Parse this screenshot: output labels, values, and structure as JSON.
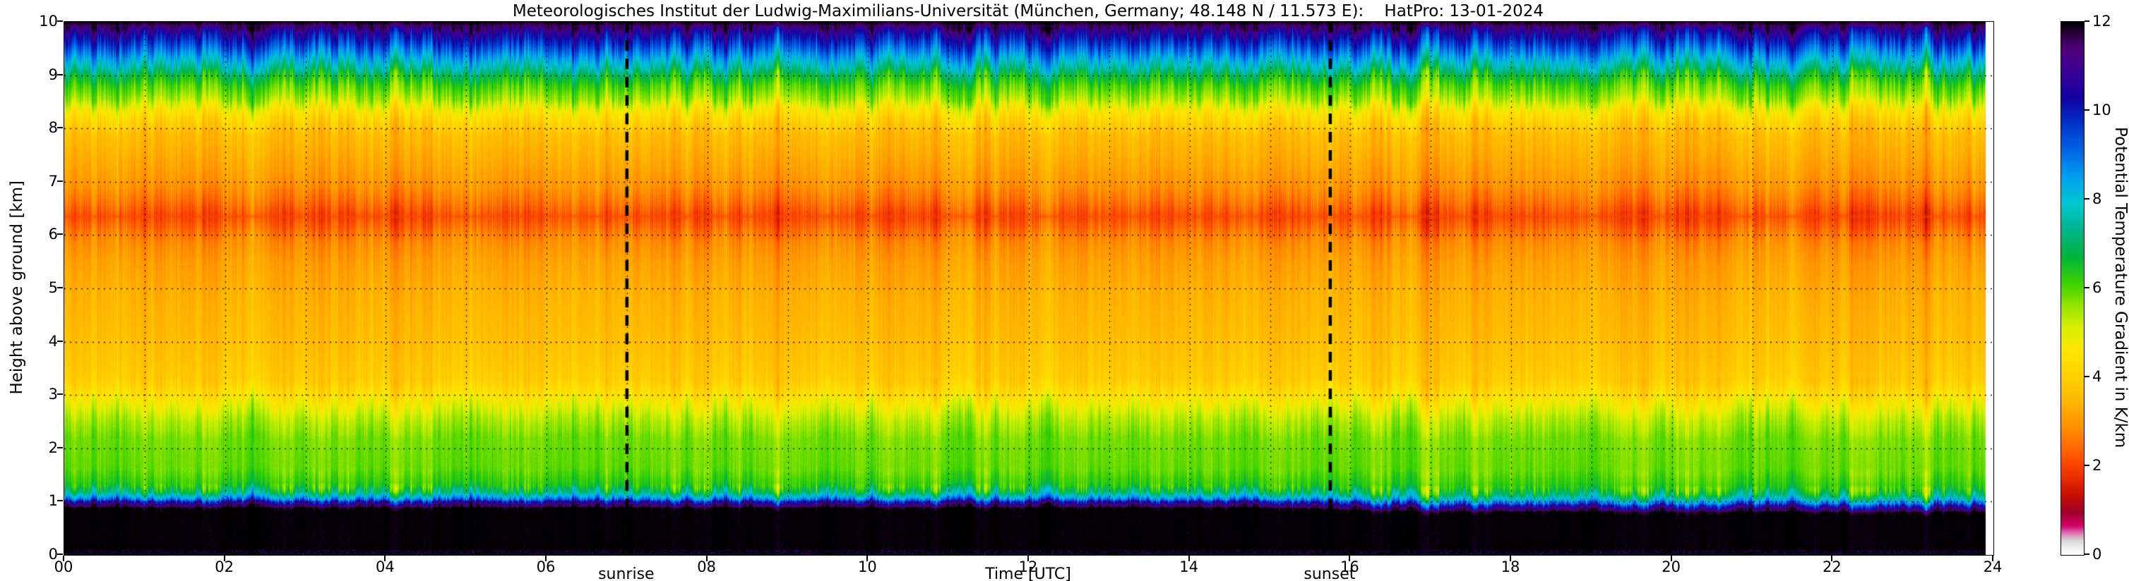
{
  "title": "Meteorologisches Institut der Ludwig-Maximilians-Universität (München, Germany; 48.148 N / 11.573 E):    HatPro: 13-01-2024",
  "chart_data": {
    "type": "heatmap",
    "title": "Meteorologisches Institut der Ludwig-Maximilians-Universität (München, Germany; 48.148 N / 11.573 E):    HatPro: 13-01-2024",
    "xlabel": "Time [UTC]",
    "ylabel": "Height above ground [km]",
    "colorbar_label": "Potential Temperature Gradient in K/km",
    "x_range_utc": [
      0,
      24
    ],
    "y_range_km": [
      0,
      10
    ],
    "value_range_K_per_km": [
      0,
      12
    ],
    "x_tick_labels": [
      "00",
      "02",
      "04",
      "06",
      "08",
      "10",
      "12",
      "14",
      "16",
      "18",
      "20",
      "22",
      "24"
    ],
    "y_tick_labels": [
      "0",
      "1",
      "2",
      "3",
      "4",
      "5",
      "6",
      "7",
      "8",
      "9",
      "10"
    ],
    "colorbar_tick_labels": [
      "0",
      "2",
      "4",
      "6",
      "8",
      "10",
      "12"
    ],
    "grid": "dotted black, vertical each hour, horizontal each km",
    "annotations": [
      {
        "label": "sunrise",
        "x_utc": 7.0,
        "style": "dashed-vertical-line"
      },
      {
        "label": "sunset",
        "x_utc": 15.75,
        "style": "dashed-vertical-line"
      }
    ],
    "vertical_profile_K_per_km": [
      [
        0,
        12
      ],
      [
        0.88,
        12
      ],
      [
        0.93,
        11.2
      ],
      [
        0.99,
        10.2
      ],
      [
        1.04,
        9.0
      ],
      [
        1.1,
        8.0
      ],
      [
        1.18,
        7.0
      ],
      [
        1.3,
        6.3
      ],
      [
        1.6,
        5.9
      ],
      [
        2.2,
        5.8
      ],
      [
        2.55,
        5.4
      ],
      [
        2.8,
        4.9
      ],
      [
        3.0,
        4.4
      ],
      [
        3.3,
        3.9
      ],
      [
        4.0,
        3.6
      ],
      [
        4.8,
        3.4
      ],
      [
        5.5,
        3.1
      ],
      [
        5.9,
        2.8
      ],
      [
        6.15,
        2.4
      ],
      [
        6.35,
        2.1
      ],
      [
        6.6,
        2.5
      ],
      [
        6.9,
        2.9
      ],
      [
        7.3,
        3.2
      ],
      [
        7.9,
        3.6
      ],
      [
        8.15,
        4.1
      ],
      [
        8.35,
        4.7
      ],
      [
        8.55,
        5.5
      ],
      [
        8.8,
        6.1
      ],
      [
        9.0,
        6.8
      ],
      [
        9.15,
        7.6
      ],
      [
        9.3,
        8.3
      ],
      [
        9.45,
        9.0
      ],
      [
        9.6,
        9.7
      ],
      [
        9.75,
        10.4
      ],
      [
        9.88,
        11.2
      ],
      [
        10,
        12
      ]
    ],
    "inversion_top_km_vs_time": [
      [
        0,
        0.95
      ],
      [
        15,
        0.95
      ],
      [
        16.5,
        0.82
      ],
      [
        24,
        0.8
      ]
    ],
    "colormap_stops": [
      [
        0,
        "#ffffff"
      ],
      [
        0.18,
        "#ececec"
      ],
      [
        0.32,
        "#d6d6d6"
      ],
      [
        0.45,
        "#e289c0"
      ],
      [
        0.65,
        "#d4006a"
      ],
      [
        0.95,
        "#a00028"
      ],
      [
        1.35,
        "#c81000"
      ],
      [
        1.8,
        "#f03200"
      ],
      [
        2.2,
        "#ff5500"
      ],
      [
        2.8,
        "#ff8c00"
      ],
      [
        3.4,
        "#ffb400"
      ],
      [
        4.0,
        "#ffd200"
      ],
      [
        4.6,
        "#ffe600"
      ],
      [
        5.1,
        "#d9f000"
      ],
      [
        5.6,
        "#96e400"
      ],
      [
        6.1,
        "#3cd200"
      ],
      [
        6.7,
        "#00b43c"
      ],
      [
        7.3,
        "#00b48c"
      ],
      [
        7.9,
        "#00c8d2"
      ],
      [
        8.5,
        "#00a0f0"
      ],
      [
        9.1,
        "#0064e6"
      ],
      [
        9.7,
        "#0032c8"
      ],
      [
        10.3,
        "#1400a0"
      ],
      [
        10.9,
        "#3c0096"
      ],
      [
        11.4,
        "#500078"
      ],
      [
        11.7,
        "#2c0040"
      ],
      [
        12,
        "#000000"
      ]
    ],
    "notes": "Strong surface inversion (black, >=12 K/km) from ground to ~0.9 km all day, lowering slightly to ~0.8 km after ~16 UTC; thin blue/cyan transition above it; green layer ~1.2-2.6 km; yellow/orange free troposphere with red-orange band near 6.3 km; green band ~8.4-9.1 km; blue to black above 9.2 km."
  }
}
